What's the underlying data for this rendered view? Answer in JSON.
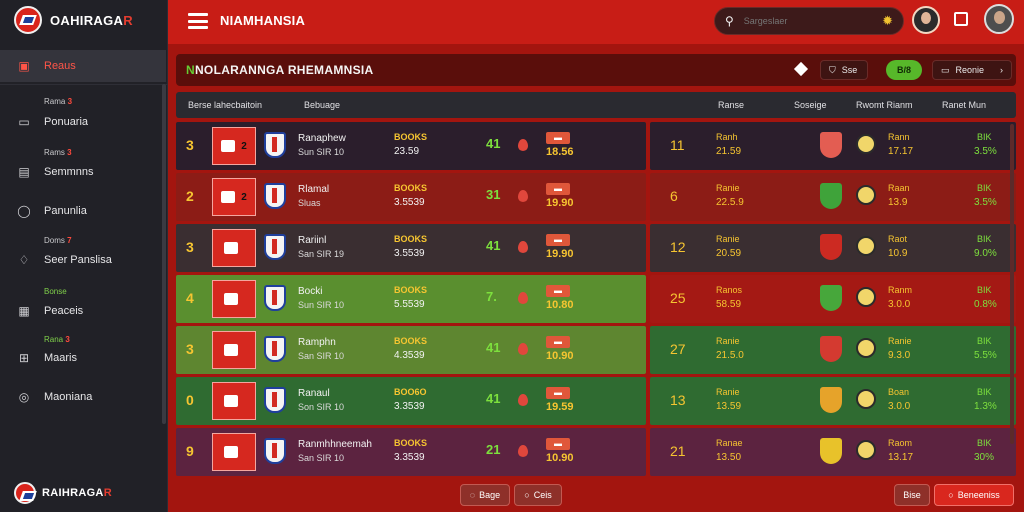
{
  "brand": {
    "name": "OAHIRAGA",
    "accent": "R",
    "footer_name": "RAIHRAGA",
    "footer_accent": "R"
  },
  "sidebar": {
    "items": [
      {
        "label": "Reaus",
        "icon": "calendar-icon"
      },
      {
        "label": "Ponuaria",
        "icon": "tv-icon",
        "caption": "Rama",
        "caption_num": "3"
      },
      {
        "label": "Semmnns",
        "icon": "monitor-icon",
        "caption": "Rams",
        "caption_num": "3"
      },
      {
        "label": "Panunlia",
        "icon": "chat-icon"
      },
      {
        "label": "Seer Panslisa",
        "icon": "bell-icon",
        "caption": "Doms",
        "caption_num": "7"
      },
      {
        "label": "Peaceis",
        "icon": "table-icon",
        "caption": "Bonse"
      },
      {
        "label": "Maaris",
        "icon": "sitemap-icon",
        "caption": "Rana",
        "caption_num": "3"
      },
      {
        "label": "Maoniana",
        "icon": "compass-icon"
      }
    ]
  },
  "topbar": {
    "title": "NIAMHANSIA",
    "search_placeholder": "Sargeslaer"
  },
  "panel": {
    "title": "NOLARANNGA RHEMAMNSIA",
    "title_accent": "N",
    "btn_a": "Sse",
    "btn_b": "B/8",
    "btn_c": "Reonie",
    "headers": {
      "h1": "Berse lahecbaitoin",
      "h2": "Bebuage",
      "h3": "Ranse",
      "h4": "Soseige",
      "h5": "Rwomt Rianm",
      "h6": "Ranet Mun"
    }
  },
  "rows": [
    {
      "rank": "3",
      "n1": "2",
      "team": "Ranaphew",
      "sub": "Sun SIR 10",
      "sc1": "BOOKS",
      "sc2": "23.59",
      "mid": "41",
      "odds": "18.56",
      "rnum": "11",
      "rp1": "Ranh",
      "rp2": "21.59",
      "rlab": "Rann",
      "rval": "17.17",
      "pct1": "BIK",
      "pct2": "3.5%"
    },
    {
      "rank": "2",
      "n1": "2",
      "team": "Rlamal",
      "sub": "Sluas",
      "sc1": "BOOKS",
      "sc2": "3.5539",
      "mid": "31",
      "odds": "19.90",
      "rnum": "6",
      "rp1": "Ranie",
      "rp2": "22.5.9",
      "rlab": "Raan",
      "rval": "13.9",
      "pct1": "BIK",
      "pct2": "3.5%"
    },
    {
      "rank": "3",
      "n1": "",
      "team": "Rariinl",
      "sub": "San SIR 19",
      "sc1": "BOOKS",
      "sc2": "3.5539",
      "mid": "41",
      "odds": "19.90",
      "rnum": "12",
      "rp1": "Ranie",
      "rp2": "20.59",
      "rlab": "Raot",
      "rval": "10.9",
      "pct1": "BIK",
      "pct2": "9.0%"
    },
    {
      "rank": "4",
      "n1": "",
      "team": "Bocki",
      "sub": "Sun SIR 10",
      "sc1": "BOOKS",
      "sc2": "5.5539",
      "mid": "7.",
      "odds": "10.80",
      "rnum": "25",
      "rp1": "Ranos",
      "rp2": "58.59",
      "rlab": "Ranm",
      "rval": "3.0.0",
      "pct1": "BIK",
      "pct2": "0.8%"
    },
    {
      "rank": "3",
      "n1": "",
      "team": "Ramphn",
      "sub": "San SIR 10",
      "sc1": "BOOKS",
      "sc2": "4.3539",
      "mid": "41",
      "odds": "10.90",
      "rnum": "27",
      "rp1": "Ranie",
      "rp2": "21.5.0",
      "rlab": "Ranie",
      "rval": "9.3.0",
      "pct1": "BIK",
      "pct2": "5.5%"
    },
    {
      "rank": "0",
      "n1": "",
      "team": "Ranaul",
      "sub": "Son SIR 10",
      "sc1": "BOO6O",
      "sc2": "3.3539",
      "mid": "41",
      "odds": "19.59",
      "rnum": "13",
      "rp1": "Ranie",
      "rp2": "13.59",
      "rlab": "Boan",
      "rval": "3.0.0",
      "pct1": "BIK",
      "pct2": "1.3%"
    },
    {
      "rank": "9",
      "n1": "",
      "team": "Ranmhhneemah",
      "sub": "San SIR 10",
      "sc1": "BOOKS",
      "sc2": "3.3539",
      "mid": "21",
      "odds": "10.90",
      "rnum": "21",
      "rp1": "Ranae",
      "rp2": "13.50",
      "rlab": "Raom",
      "rval": "13.17",
      "pct1": "BIK",
      "pct2": "30%"
    }
  ],
  "pager": {
    "p1": "Bage",
    "p2": "Ceis",
    "p3": "Bise",
    "p4": "Beneeniss"
  },
  "colors": {
    "accent": "#c81d16",
    "highlight": "#f6c531",
    "positive": "#7de03d"
  }
}
